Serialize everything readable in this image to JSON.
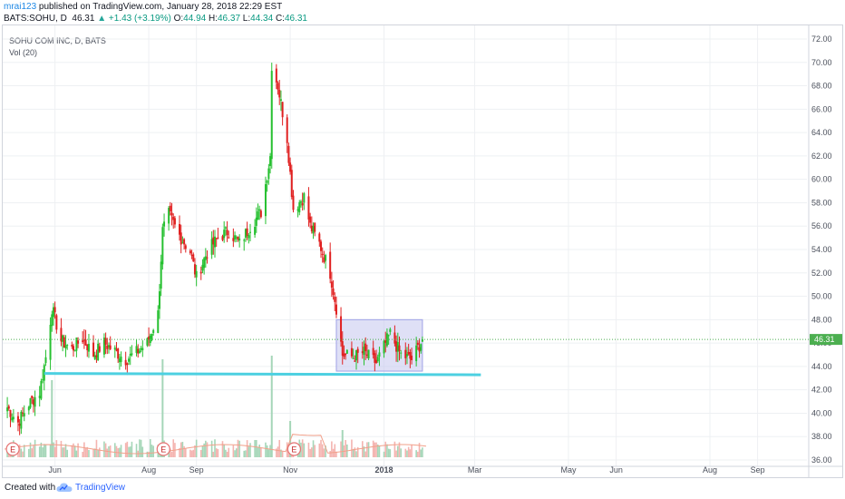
{
  "header": {
    "user": "mrai123",
    "published": "published on TradingView.com, January 28, 2018 22:29 EST",
    "symbol": "BATS:SOHU, D",
    "last": "46.31",
    "change": "+1.43 (+3.19%)",
    "o_label": "O:",
    "o": "44.94",
    "h_label": "H:",
    "h": "46.37",
    "l_label": "L:",
    "l": "44.34",
    "c_label": "C:",
    "c": "46.31"
  },
  "legend": {
    "title": "SOHU COM INC, D, BATS",
    "volume": "Vol (20)"
  },
  "footer": {
    "created": "Created with",
    "brand": "TradingView"
  },
  "colors": {
    "up": "#26a69a",
    "down": "#ef5350",
    "bull_candle": "#26c030",
    "bear_candle": "#e02020",
    "support_line": "#4dd0e1",
    "box_fill": "#c5c7ef",
    "last_price": "#4caf50",
    "ma": "#f2a08a",
    "grid": "#eef0f3"
  },
  "chart_data": {
    "type": "candlestick",
    "symbol": "BATS:SOHU",
    "y_axis": {
      "min": 36,
      "max": 72,
      "ticks": [
        "72.00",
        "70.00",
        "68.00",
        "66.00",
        "64.00",
        "62.00",
        "60.00",
        "58.00",
        "56.00",
        "54.00",
        "52.00",
        "50.00",
        "48.00",
        "46.00",
        "44.00",
        "42.00",
        "40.00",
        "38.00",
        "36.00"
      ]
    },
    "x_labels": [
      "Jun",
      "Aug",
      "Sep",
      "Nov",
      "2018",
      "Mar",
      "May",
      "Jun",
      "Aug",
      "Sep"
    ],
    "last_price_label": "46.31",
    "earnings_markers": [
      "E",
      "E",
      "E"
    ],
    "close_path": [
      {
        "date": "2017-05-01",
        "close": 40.5
      },
      {
        "date": "2017-05-08",
        "close": 39.2
      },
      {
        "date": "2017-05-15",
        "close": 40.8
      },
      {
        "date": "2017-05-22",
        "close": 41.8
      },
      {
        "date": "2017-05-26",
        "close": 44.8
      },
      {
        "date": "2017-05-30",
        "close": 49.0
      },
      {
        "date": "2017-06-05",
        "close": 46.2
      },
      {
        "date": "2017-06-12",
        "close": 45.5
      },
      {
        "date": "2017-06-19",
        "close": 46.4
      },
      {
        "date": "2017-06-26",
        "close": 45.0
      },
      {
        "date": "2017-07-03",
        "close": 46.0
      },
      {
        "date": "2017-07-10",
        "close": 45.3
      },
      {
        "date": "2017-07-17",
        "close": 44.6
      },
      {
        "date": "2017-07-24",
        "close": 45.2
      },
      {
        "date": "2017-07-31",
        "close": 46.0
      },
      {
        "date": "2017-08-07",
        "close": 48.5
      },
      {
        "date": "2017-08-10",
        "close": 55.6
      },
      {
        "date": "2017-08-14",
        "close": 57.0
      },
      {
        "date": "2017-08-21",
        "close": 55.2
      },
      {
        "date": "2017-08-28",
        "close": 53.8
      },
      {
        "date": "2017-09-01",
        "close": 51.6
      },
      {
        "date": "2017-09-08",
        "close": 53.8
      },
      {
        "date": "2017-09-15",
        "close": 55.0
      },
      {
        "date": "2017-09-22",
        "close": 55.6
      },
      {
        "date": "2017-09-29",
        "close": 54.5
      },
      {
        "date": "2017-10-06",
        "close": 56.0
      },
      {
        "date": "2017-10-13",
        "close": 57.2
      },
      {
        "date": "2017-10-19",
        "close": 62.0
      },
      {
        "date": "2017-10-20",
        "close": 69.8
      },
      {
        "date": "2017-10-24",
        "close": 68.0
      },
      {
        "date": "2017-10-30",
        "close": 63.5
      },
      {
        "date": "2017-11-03",
        "close": 57.5
      },
      {
        "date": "2017-11-10",
        "close": 58.5
      },
      {
        "date": "2017-11-14",
        "close": 56.0
      },
      {
        "date": "2017-11-20",
        "close": 54.5
      },
      {
        "date": "2017-11-27",
        "close": 52.0
      },
      {
        "date": "2017-12-01",
        "close": 49.0
      },
      {
        "date": "2017-12-05",
        "close": 45.0
      },
      {
        "date": "2017-12-12",
        "close": 44.8
      },
      {
        "date": "2017-12-19",
        "close": 45.2
      },
      {
        "date": "2017-12-27",
        "close": 44.3
      },
      {
        "date": "2018-01-05",
        "close": 46.8
      },
      {
        "date": "2018-01-12",
        "close": 45.0
      },
      {
        "date": "2018-01-19",
        "close": 44.6
      },
      {
        "date": "2018-01-26",
        "close": 46.31
      }
    ],
    "support_line": {
      "from_date": "2017-05-25",
      "to_date": "2018-03-05",
      "price": 43.4
    },
    "consolidation_box": {
      "from_date": "2017-12-01",
      "to_date": "2018-01-26",
      "price_low": 43.6,
      "price_high": 48.0
    }
  }
}
